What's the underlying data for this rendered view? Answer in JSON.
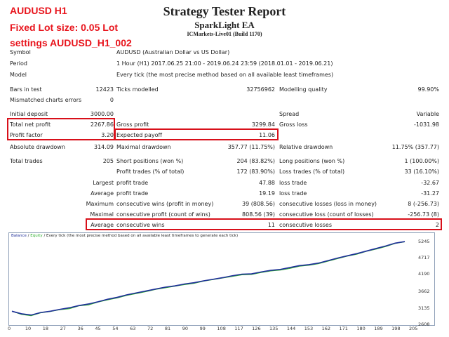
{
  "overlay": {
    "line1": "AUDUSD H1",
    "line2": "Fixed Lot size: 0.05 Lot",
    "line3": "settings AUDUSD_H1_002"
  },
  "header": {
    "title": "Strategy Tester Report",
    "ea_name": "SparkLight EA",
    "server": "ICMarkets-Live01 (Build 1170)"
  },
  "info": {
    "symbol_label": "Symbol",
    "symbol_value": "AUDUSD (Australian Dollar vs US Dollar)",
    "period_label": "Period",
    "period_value": "1 Hour (H1) 2017.06.25 21:00 - 2019.06.24 23:59 (2018.01.01 - 2019.06.21)",
    "model_label": "Model",
    "model_value": "Every tick (the most precise method based on all available least timeframes)"
  },
  "stats": {
    "bars_label": "Bars in test",
    "bars_value": "12423",
    "ticks_label": "Ticks modelled",
    "ticks_value": "32756962",
    "quality_label": "Modelling quality",
    "quality_value": "99.90%",
    "mismatch_label": "Mismatched charts errors",
    "mismatch_value": "0",
    "deposit_label": "Initial deposit",
    "deposit_value": "3000.00",
    "spread_label": "Spread",
    "spread_value": "Variable",
    "netprofit_label": "Total net profit",
    "netprofit_value": "2267.86",
    "grossprofit_label": "Gross profit",
    "grossprofit_value": "3299.84",
    "grossloss_label": "Gross loss",
    "grossloss_value": "-1031.98",
    "pf_label": "Profit factor",
    "pf_value": "3.20",
    "payoff_label": "Expected payoff",
    "payoff_value": "11.06",
    "absdd_label": "Absolute drawdown",
    "absdd_value": "314.09",
    "maxdd_label": "Maximal drawdown",
    "maxdd_value": "357.77 (11.75%)",
    "reldd_label": "Relative drawdown",
    "reldd_value": "11.75% (357.77)",
    "trades_label": "Total trades",
    "trades_value": "205",
    "short_label": "Short positions (won %)",
    "short_value": "204 (83.82%)",
    "long_label": "Long positions (won %)",
    "long_value": "1 (100.00%)",
    "profit_trades_label": "Profit trades (% of total)",
    "profit_trades_value": "172 (83.90%)",
    "loss_trades_label": "Loss trades (% of total)",
    "loss_trades_value": "33 (16.10%)",
    "largest_label": "Largest",
    "largest_profit_label": "profit trade",
    "largest_profit_value": "47.88",
    "largest_loss_label": "loss trade",
    "largest_loss_value": "-32.67",
    "average_label": "Average",
    "average_profit_label": "profit trade",
    "average_profit_value": "19.19",
    "average_loss_label": "loss trade",
    "average_loss_value": "-31.27",
    "maximum_label": "Maximum",
    "max_wins_label": "consecutive wins (profit in money)",
    "max_wins_value": "39 (808.56)",
    "max_losses_label": "consecutive losses (loss in money)",
    "max_losses_value": "8 (-256.73)",
    "maximal_label": "Maximal",
    "maximal_profit_label": "consecutive profit (count of wins)",
    "maximal_profit_value": "808.56 (39)",
    "maximal_loss_label": "consecutive loss (count of losses)",
    "maximal_loss_value": "-256.73 (8)",
    "avg_label": "Average",
    "avg_wins_label": "consecutive wins",
    "avg_wins_value": "11",
    "avg_losses_label": "consecutive losses",
    "avg_losses_value": "2"
  },
  "chart": {
    "legend_balance": "Balance",
    "legend_sep": " / ",
    "legend_equity": "Equity",
    "legend_rest": " / Every tick (the most precise method based on all available least timeframes to generate each tick)",
    "balance_color": "#1f2f9a",
    "equity_color": "#2fae2f",
    "y_ticks": [
      "5245",
      "4717",
      "4190",
      "3662",
      "3135",
      "2608"
    ],
    "x_ticks": [
      "0",
      "10",
      "18",
      "27",
      "36",
      "45",
      "54",
      "63",
      "72",
      "81",
      "90",
      "99",
      "108",
      "117",
      "126",
      "135",
      "144",
      "153",
      "162",
      "171",
      "180",
      "189",
      "198",
      "205"
    ]
  },
  "chart_data": {
    "type": "line",
    "x_label": "",
    "y_label": "",
    "ylim": [
      2608,
      5245
    ],
    "xlim": [
      0,
      205
    ],
    "series": [
      {
        "name": "Balance",
        "x": [
          0,
          5,
          10,
          15,
          20,
          25,
          30,
          35,
          40,
          45,
          50,
          55,
          60,
          65,
          70,
          75,
          80,
          85,
          90,
          95,
          100,
          105,
          110,
          115,
          120,
          125,
          130,
          135,
          140,
          145,
          150,
          155,
          160,
          165,
          170,
          175,
          180,
          185,
          190,
          195,
          200,
          205
        ],
        "y": [
          3000,
          2920,
          2880,
          2960,
          3000,
          3060,
          3110,
          3180,
          3230,
          3300,
          3380,
          3440,
          3520,
          3580,
          3640,
          3700,
          3760,
          3800,
          3860,
          3900,
          3960,
          4010,
          4060,
          4120,
          4170,
          4180,
          4240,
          4290,
          4320,
          4380,
          4440,
          4470,
          4520,
          4600,
          4680,
          4750,
          4820,
          4900,
          4980,
          5060,
          5150,
          5200
        ]
      },
      {
        "name": "Equity",
        "x": [
          0,
          5,
          10,
          15,
          20,
          25,
          30,
          35,
          40,
          45,
          50,
          55,
          60,
          65,
          70,
          75,
          80,
          85,
          90,
          95,
          100,
          105,
          110,
          115,
          120,
          125,
          130,
          135,
          140,
          145,
          150,
          155,
          160,
          165,
          170,
          175,
          180,
          185,
          190,
          195,
          200,
          205
        ],
        "y": [
          3000,
          2900,
          2860,
          2950,
          2990,
          3050,
          3080,
          3170,
          3200,
          3290,
          3360,
          3420,
          3500,
          3560,
          3620,
          3690,
          3740,
          3790,
          3840,
          3880,
          3950,
          4000,
          4050,
          4100,
          4150,
          4160,
          4220,
          4270,
          4300,
          4350,
          4420,
          4450,
          4500,
          4580,
          4660,
          4740,
          4800,
          4890,
          4960,
          5040,
          5140,
          5190
        ]
      }
    ]
  }
}
